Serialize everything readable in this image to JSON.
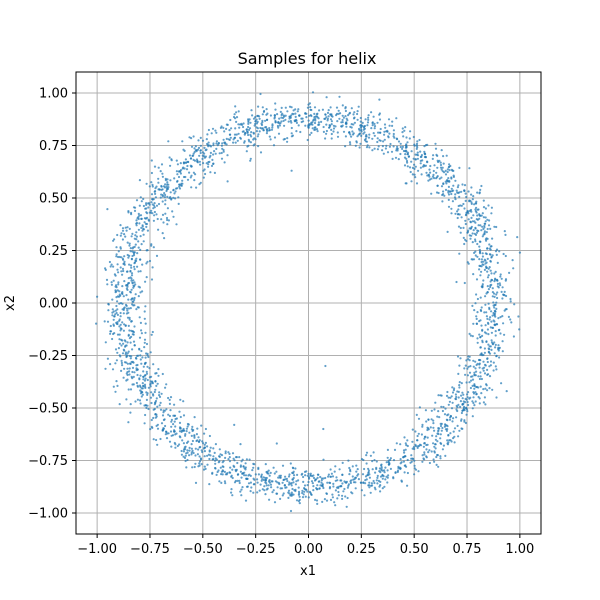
{
  "chart_data": {
    "type": "scatter",
    "title": "Samples for helix",
    "xlabel": "x1",
    "ylabel": "x2",
    "xlim": [
      -1.1,
      1.1
    ],
    "ylim": [
      -1.1,
      1.1
    ],
    "xticks": [
      -1.0,
      -0.75,
      -0.5,
      -0.25,
      0.0,
      0.25,
      0.5,
      0.75,
      1.0
    ],
    "yticks": [
      -1.0,
      -0.75,
      -0.5,
      -0.25,
      0.0,
      0.25,
      0.5,
      0.75,
      1.0
    ],
    "xtick_labels": [
      "−1.00",
      "−0.75",
      "−0.50",
      "−0.25",
      "0.00",
      "0.25",
      "0.50",
      "0.75",
      "1.00"
    ],
    "ytick_labels": [
      "−1.00",
      "−0.75",
      "−0.50",
      "−0.25",
      "0.00",
      "0.25",
      "0.50",
      "0.75",
      "1.00"
    ],
    "grid": true,
    "marker_color": "#1f77b4",
    "marker_alpha": 0.7,
    "series": [
      {
        "sampling": "ring of points centered at origin",
        "ring_center": [
          0.0,
          0.0
        ],
        "ring_radius_range": [
          0.8,
          0.95
        ],
        "approx_point_count": 3000,
        "outliers": [
          [
            -0.08,
            0.63
          ],
          [
            0.46,
            0.57
          ],
          [
            0.7,
            0.1
          ],
          [
            1.0,
            0.24
          ],
          [
            -1.0,
            0.03
          ],
          [
            -0.75,
            0.2
          ],
          [
            0.07,
            -0.6
          ],
          [
            0.08,
            -0.3
          ]
        ]
      }
    ]
  }
}
